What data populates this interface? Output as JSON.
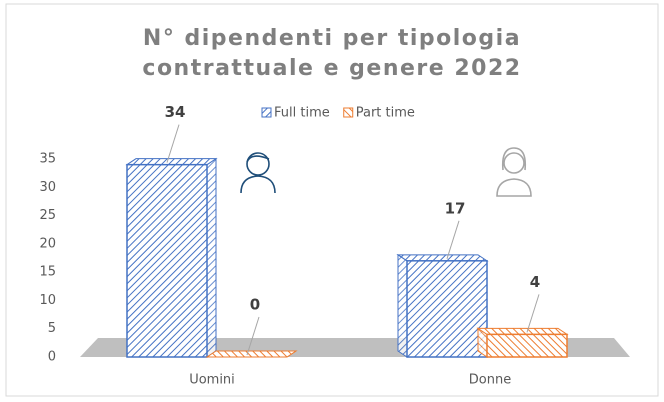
{
  "chart_data": {
    "type": "bar3d",
    "title": "N° dipendenti per tipologia contrattuale e genere 2022",
    "categories": [
      "Uomini",
      "Donne"
    ],
    "series": [
      {
        "name": "Full time",
        "color": "#4472c4",
        "values": [
          34,
          17
        ]
      },
      {
        "name": "Part time",
        "color": "#ed7d31",
        "values": [
          0,
          4
        ]
      }
    ],
    "ylim": [
      0,
      35
    ],
    "yticks": [
      0,
      5,
      10,
      15,
      20,
      25,
      30,
      35
    ],
    "legend": "top"
  }
}
